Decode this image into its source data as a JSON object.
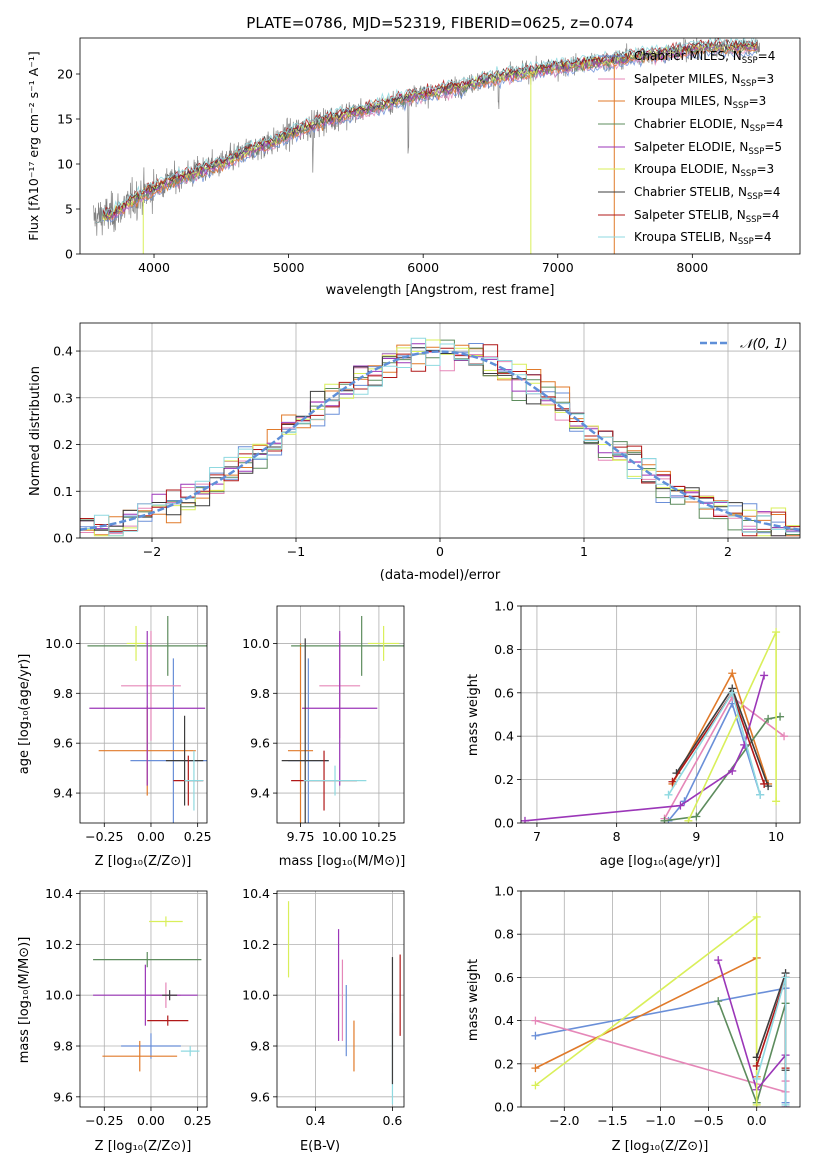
{
  "colors": {
    "chabrier_miles": "#6a8fd8",
    "salpeter_miles": "#e587b8",
    "kroupa_miles": "#e07a2a",
    "chabrier_elodie": "#5d8c5d",
    "salpeter_elodie": "#9b36b8",
    "kroupa_elodie": "#d9ef5a",
    "chabrier_stelib": "#3d3d3d",
    "salpeter_stelib": "#b01818",
    "kroupa_stelib": "#8fd9e0",
    "data": "#808080",
    "normal": "#5f8fd8"
  },
  "chart_data": [
    {
      "id": "spectrum",
      "type": "line",
      "title": "PLATE=0786, MJD=52319, FIBERID=0625, z=0.074",
      "xlabel": "wavelength [Angstrom, rest frame]",
      "ylabel": "Flux [fλ10⁻¹⁷ erg cm⁻² s⁻¹ A⁻¹]",
      "xlim": [
        3450,
        8800
      ],
      "ylim": [
        0,
        24
      ],
      "xticks": [
        "4000",
        "5000",
        "6000",
        "7000",
        "8000"
      ],
      "yticks": [
        "0",
        "5",
        "10",
        "15",
        "20"
      ],
      "legend_position": "right",
      "continuum": {
        "x": [
          3550,
          3700,
          3900,
          4100,
          4300,
          4500,
          4700,
          4900,
          5100,
          5300,
          5500,
          5700,
          5900,
          6100,
          6300,
          6500,
          6700,
          6900,
          7100,
          7300,
          7400,
          7600,
          7800,
          8000,
          8200,
          8400,
          8500
        ],
        "y": [
          4.0,
          4.5,
          6.5,
          8.0,
          9.0,
          10.0,
          11.5,
          12.5,
          14.0,
          15.0,
          15.8,
          16.5,
          17.5,
          18.0,
          18.7,
          19.5,
          20.0,
          20.5,
          21.0,
          21.3,
          21.5,
          22.0,
          22.3,
          22.8,
          23.0,
          23.0,
          23.1
        ]
      },
      "series": [
        {
          "name": "Chabrier MILES, N_SSP=4",
          "label_main": "Chabrier MILES, N",
          "label_sub": "SSP",
          "label_tail": "=4",
          "key": "chabrier_miles"
        },
        {
          "name": "Salpeter MILES, N_SSP=3",
          "label_main": "Salpeter MILES, N",
          "label_sub": "SSP",
          "label_tail": "=3",
          "key": "salpeter_miles"
        },
        {
          "name": "Kroupa MILES, N_SSP=3",
          "label_main": "Kroupa MILES, N",
          "label_sub": "SSP",
          "label_tail": "=3",
          "key": "kroupa_miles"
        },
        {
          "name": "Chabrier ELODIE, N_SSP=4",
          "label_main": "Chabrier ELODIE, N",
          "label_sub": "SSP",
          "label_tail": "=4",
          "key": "chabrier_elodie"
        },
        {
          "name": "Salpeter ELODIE, N_SSP=5",
          "label_main": "Salpeter ELODIE, N",
          "label_sub": "SSP",
          "label_tail": "=5",
          "key": "salpeter_elodie"
        },
        {
          "name": "Kroupa ELODIE, N_SSP=3",
          "label_main": "Kroupa ELODIE, N",
          "label_sub": "SSP",
          "label_tail": "=3",
          "key": "kroupa_elodie"
        },
        {
          "name": "Chabrier STELIB, N_SSP=4",
          "label_main": "Chabrier STELIB, N",
          "label_sub": "SSP",
          "label_tail": "=4",
          "key": "chabrier_stelib"
        },
        {
          "name": "Salpeter STELIB, N_SSP=4",
          "label_main": "Salpeter STELIB, N",
          "label_sub": "SSP",
          "label_tail": "=4",
          "key": "salpeter_stelib"
        },
        {
          "name": "Kroupa STELIB, N_SSP=4",
          "label_main": "Kroupa STELIB, N",
          "label_sub": "SSP",
          "label_tail": "=4",
          "key": "kroupa_stelib"
        }
      ]
    },
    {
      "id": "residuals",
      "type": "line",
      "xlabel": "(data-model)/error",
      "ylabel": "Normed distribution",
      "xlim": [
        -2.5,
        2.5
      ],
      "ylim": [
        0,
        0.46
      ],
      "xticks": [
        "−2",
        "−1",
        "0",
        "1",
        "2"
      ],
      "yticks": [
        "0.0",
        "0.1",
        "0.2",
        "0.3",
        "0.4"
      ],
      "legend_label": "𝒩(0, 1)",
      "legend_position": "top-right",
      "normal": {
        "mean": 0,
        "sigma": 1
      }
    },
    {
      "id": "age_vs_Z",
      "type": "scatter",
      "xlabel": "Z [log₁₀(Z/Z⊙)]",
      "ylabel": "age  [log₁₀(age/yr)]",
      "xlim": [
        -0.38,
        0.3
      ],
      "ylim": [
        9.28,
        10.15
      ],
      "xticks": [
        "−0.25",
        "0.00",
        "0.25"
      ],
      "yticks": [
        "9.4",
        "9.6",
        "9.8",
        "10.0"
      ],
      "points": [
        {
          "key": "chabrier_miles",
          "x": 0.12,
          "y": 9.53,
          "xerr": 0.23,
          "yerr": 0.41
        },
        {
          "key": "salpeter_miles",
          "x": 0.0,
          "y": 9.83,
          "xerr": 0.16,
          "yerr": 0.22
        },
        {
          "key": "kroupa_miles",
          "x": -0.02,
          "y": 9.57,
          "xerr": 0.26,
          "yerr": 0.18
        },
        {
          "key": "chabrier_elodie",
          "x": 0.09,
          "y": 9.99,
          "xerr": 0.43,
          "yerr": 0.12
        },
        {
          "key": "salpeter_elodie",
          "x": -0.02,
          "y": 9.74,
          "xerr": 0.31,
          "yerr": 0.31
        },
        {
          "key": "kroupa_elodie",
          "x": -0.08,
          "y": 10.0,
          "xerr": 0.05,
          "yerr": 0.07
        },
        {
          "key": "chabrier_stelib",
          "x": 0.18,
          "y": 9.53,
          "xerr": 0.1,
          "yerr": 0.18
        },
        {
          "key": "salpeter_stelib",
          "x": 0.2,
          "y": 9.45,
          "xerr": 0.08,
          "yerr": 0.1
        },
        {
          "key": "kroupa_stelib",
          "x": 0.23,
          "y": 9.45,
          "xerr": 0.05,
          "yerr": 0.12
        }
      ]
    },
    {
      "id": "age_vs_mass",
      "type": "scatter",
      "xlabel": "mass [log₁₀(M/M⊙)]",
      "ylabel": "",
      "xlim": [
        9.6,
        10.41
      ],
      "ylim": [
        9.28,
        10.15
      ],
      "xticks": [
        "9.75",
        "10.00",
        "10.25"
      ],
      "yticks": [
        "9.4",
        "9.6",
        "9.8",
        "10.0"
      ],
      "points": [
        {
          "key": "chabrier_miles",
          "x": 9.8,
          "y": 9.53,
          "xerr": 0.13,
          "yerr": 0.41
        },
        {
          "key": "salpeter_miles",
          "x": 10.0,
          "y": 9.83,
          "xerr": 0.13,
          "yerr": 0.21
        },
        {
          "key": "kroupa_miles",
          "x": 9.75,
          "y": 9.57,
          "xerr": 0.08,
          "yerr": 0.43
        },
        {
          "key": "chabrier_elodie",
          "x": 10.14,
          "y": 9.99,
          "xerr": 0.45,
          "yerr": 0.12
        },
        {
          "key": "salpeter_elodie",
          "x": 10.0,
          "y": 9.74,
          "xerr": 0.24,
          "yerr": 0.31
        },
        {
          "key": "kroupa_elodie",
          "x": 10.28,
          "y": 10.0,
          "xerr": 0.1,
          "yerr": 0.07
        },
        {
          "key": "chabrier_stelib",
          "x": 9.78,
          "y": 9.53,
          "xerr": 0.15,
          "yerr": 0.49
        },
        {
          "key": "salpeter_stelib",
          "x": 9.9,
          "y": 9.45,
          "xerr": 0.21,
          "yerr": 0.12
        },
        {
          "key": "kroupa_stelib",
          "x": 9.97,
          "y": 9.45,
          "xerr": 0.2,
          "yerr": 0.06
        }
      ]
    },
    {
      "id": "weight_vs_age",
      "type": "line",
      "xlabel": "age  [log₁₀(age/yr)]",
      "ylabel": "mass weight",
      "xlim": [
        6.8,
        10.3
      ],
      "ylim": [
        0,
        1.0
      ],
      "xticks": [
        "7",
        "8",
        "9",
        "10"
      ],
      "yticks": [
        "0.0",
        "0.2",
        "0.4",
        "0.6",
        "0.8",
        "1.0"
      ],
      "series": [
        {
          "key": "chabrier_miles",
          "x": [
            8.65,
            8.85,
            9.45,
            9.8
          ],
          "y": [
            0.01,
            0.1,
            0.55,
            0.13
          ]
        },
        {
          "key": "salpeter_miles",
          "x": [
            8.6,
            9.45,
            10.1
          ],
          "y": [
            0.02,
            0.58,
            0.4
          ]
        },
        {
          "key": "kroupa_miles",
          "x": [
            8.7,
            9.45,
            9.9
          ],
          "y": [
            0.18,
            0.69,
            0.18
          ]
        },
        {
          "key": "chabrier_elodie",
          "x": [
            8.6,
            9.0,
            9.9,
            10.05
          ],
          "y": [
            0.01,
            0.03,
            0.48,
            0.49
          ]
        },
        {
          "key": "salpeter_elodie",
          "x": [
            6.85,
            8.8,
            9.45,
            9.6,
            9.85
          ],
          "y": [
            0.01,
            0.08,
            0.24,
            0.36,
            0.68
          ]
        },
        {
          "key": "kroupa_elodie",
          "x": [
            8.9,
            10.0,
            10.0
          ],
          "y": [
            0.01,
            0.88,
            0.1
          ]
        },
        {
          "key": "chabrier_stelib",
          "x": [
            8.75,
            9.45,
            9.9
          ],
          "y": [
            0.23,
            0.62,
            0.17
          ]
        },
        {
          "key": "salpeter_stelib",
          "x": [
            8.7,
            9.45,
            9.85
          ],
          "y": [
            0.19,
            0.6,
            0.18
          ]
        },
        {
          "key": "kroupa_stelib",
          "x": [
            8.65,
            9.45,
            9.8
          ],
          "y": [
            0.13,
            0.6,
            0.13
          ]
        }
      ]
    },
    {
      "id": "mass_vs_Z",
      "type": "scatter",
      "xlabel": "Z [log₁₀(Z/Z⊙)]",
      "ylabel": "mass [log₁₀(M/M⊙)]",
      "xlim": [
        -0.38,
        0.3
      ],
      "ylim": [
        9.56,
        10.41
      ],
      "xticks": [
        "−0.25",
        "0.00",
        "0.25"
      ],
      "yticks": [
        "9.6",
        "9.8",
        "10.0",
        "10.2",
        "10.4"
      ],
      "points": [
        {
          "key": "chabrier_miles",
          "x": 0.0,
          "y": 9.8,
          "xerr": 0.16,
          "yerr": 0.05
        },
        {
          "key": "salpeter_miles",
          "x": 0.08,
          "y": 10.0,
          "xerr": 0.08,
          "yerr": 0.05
        },
        {
          "key": "kroupa_miles",
          "x": -0.06,
          "y": 9.76,
          "xerr": 0.2,
          "yerr": 0.06
        },
        {
          "key": "chabrier_elodie",
          "x": -0.02,
          "y": 10.14,
          "xerr": 0.29,
          "yerr": 0.03
        },
        {
          "key": "salpeter_elodie",
          "x": -0.03,
          "y": 10.0,
          "xerr": 0.28,
          "yerr": 0.12
        },
        {
          "key": "kroupa_elodie",
          "x": 0.08,
          "y": 10.29,
          "xerr": 0.09,
          "yerr": 0.02
        },
        {
          "key": "chabrier_stelib",
          "x": 0.1,
          "y": 10.0,
          "xerr": 0.04,
          "yerr": 0.02
        },
        {
          "key": "salpeter_stelib",
          "x": 0.09,
          "y": 9.9,
          "xerr": 0.11,
          "yerr": 0.02
        },
        {
          "key": "kroupa_stelib",
          "x": 0.21,
          "y": 9.78,
          "xerr": 0.05,
          "yerr": 0.02
        }
      ]
    },
    {
      "id": "mass_vs_ebv",
      "type": "scatter",
      "xlabel": "E(B-V)",
      "ylabel": "",
      "xlim": [
        0.3,
        0.63
      ],
      "ylim": [
        9.56,
        10.41
      ],
      "xticks": [
        "0.4",
        "0.6"
      ],
      "yticks": [
        "9.6",
        "9.8",
        "10.0",
        "10.2",
        "10.4"
      ],
      "points": [
        {
          "key": "kroupa_elodie",
          "x": 0.33,
          "y": 10.22,
          "yerr": 0.15
        },
        {
          "key": "salpeter_elodie",
          "x": 0.46,
          "y": 10.04,
          "yerr": 0.22
        },
        {
          "key": "salpeter_miles",
          "x": 0.47,
          "y": 9.98,
          "yerr": 0.16
        },
        {
          "key": "chabrier_miles",
          "x": 0.48,
          "y": 9.9,
          "yerr": 0.14
        },
        {
          "key": "kroupa_miles",
          "x": 0.5,
          "y": 9.8,
          "yerr": 0.1
        },
        {
          "key": "kroupa_stelib",
          "x": 0.6,
          "y": 9.75,
          "yerr": 0.18
        },
        {
          "key": "chabrier_stelib",
          "x": 0.6,
          "y": 9.9,
          "yerr": 0.25
        },
        {
          "key": "salpeter_stelib",
          "x": 0.62,
          "y": 10.0,
          "yerr": 0.16
        }
      ]
    },
    {
      "id": "weight_vs_Z",
      "type": "line",
      "xlabel": "Z [log₁₀(Z/Z⊙)]",
      "ylabel": "mass weight",
      "xlim": [
        -2.45,
        0.45
      ],
      "ylim": [
        0,
        1.0
      ],
      "xticks": [
        "−2.0",
        "−1.5",
        "−1.0",
        "−0.5",
        "0.0"
      ],
      "yticks": [
        "0.0",
        "0.2",
        "0.4",
        "0.6",
        "0.8",
        "1.0"
      ],
      "series": [
        {
          "key": "chabrier_miles",
          "x": [
            -2.3,
            0.3,
            0.3
          ],
          "y": [
            0.33,
            0.55,
            0.02
          ]
        },
        {
          "key": "salpeter_miles",
          "x": [
            -2.3,
            0.3,
            0.3
          ],
          "y": [
            0.4,
            0.07,
            0.12
          ]
        },
        {
          "key": "kroupa_miles",
          "x": [
            -2.3,
            0.0,
            0.0
          ],
          "y": [
            0.18,
            0.69,
            0.14
          ]
        },
        {
          "key": "chabrier_elodie",
          "x": [
            -0.4,
            0.0,
            0.3
          ],
          "y": [
            0.49,
            0.02,
            0.48
          ]
        },
        {
          "key": "salpeter_elodie",
          "x": [
            -0.4,
            0.0,
            0.3,
            0.3
          ],
          "y": [
            0.68,
            0.08,
            0.24,
            0.0
          ]
        },
        {
          "key": "kroupa_elodie",
          "x": [
            -2.3,
            0.0,
            0.0
          ],
          "y": [
            0.1,
            0.88,
            0.01
          ]
        },
        {
          "key": "chabrier_stelib",
          "x": [
            0.0,
            0.3,
            0.3
          ],
          "y": [
            0.23,
            0.62,
            0.17
          ]
        },
        {
          "key": "salpeter_stelib",
          "x": [
            0.0,
            0.3,
            0.3
          ],
          "y": [
            0.19,
            0.6,
            0.18
          ]
        },
        {
          "key": "kroupa_stelib",
          "x": [
            0.0,
            0.3,
            0.3
          ],
          "y": [
            0.13,
            0.6,
            0.01
          ]
        }
      ]
    }
  ]
}
